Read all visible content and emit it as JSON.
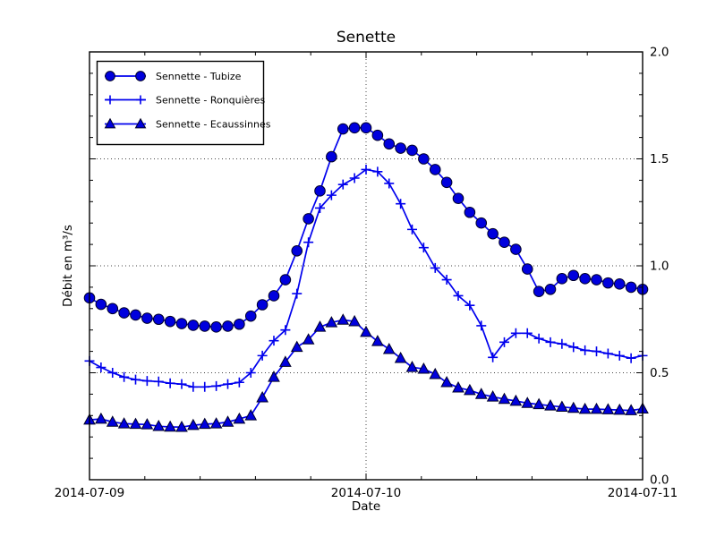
{
  "figure": {
    "background": "#ffffff",
    "border_color": "#000000"
  },
  "chart_data": {
    "type": "line",
    "title": "Senette",
    "xlabel": "Date",
    "ylabel": "Débit en m³/s",
    "x_unit": "hours since 2014-07-09 00:00",
    "xlim_hours": [
      0,
      48
    ],
    "ylim": [
      0.0,
      2.0
    ],
    "x_tick_labels": [
      "2014-07-09",
      "2014-07-10",
      "2014-07-11"
    ],
    "x_major_ticks_hours": [
      0,
      24,
      48
    ],
    "x_minor_tick_step_hours": 4.8,
    "y_tick_labels": [
      "0.0",
      "0.5",
      "1.0",
      "1.5",
      "2.0"
    ],
    "y_major_ticks": [
      0.0,
      0.5,
      1.0,
      1.5,
      2.0
    ],
    "y_minor_tick_step": 0.1,
    "y_tick_label_side": "right",
    "grid": {
      "style": "dotted",
      "x_at_hours": [
        24
      ],
      "y_at": [
        0.5,
        1.0,
        1.5
      ]
    },
    "legend": {
      "position": "upper-left"
    },
    "colors": {
      "line": "#0000ee",
      "marker_fill": "#0000dd",
      "marker_edge": "#000028",
      "grid": "#444444",
      "axis": "#000000"
    },
    "x": [
      0,
      1,
      2,
      3,
      4,
      5,
      6,
      7,
      8,
      9,
      10,
      11,
      12,
      13,
      14,
      15,
      16,
      17,
      18,
      19,
      20,
      21,
      22,
      23,
      24,
      25,
      26,
      27,
      28,
      29,
      30,
      31,
      32,
      33,
      34,
      35,
      36,
      37,
      38,
      39,
      40,
      41,
      42,
      43,
      44,
      45,
      46,
      47,
      48
    ],
    "series": [
      {
        "name": "Sennette - Tubize",
        "marker": "circle",
        "values": [
          0.85,
          0.82,
          0.8,
          0.78,
          0.77,
          0.755,
          0.75,
          0.74,
          0.73,
          0.722,
          0.718,
          0.714,
          0.718,
          0.727,
          0.765,
          0.818,
          0.86,
          0.935,
          1.07,
          1.22,
          1.35,
          1.51,
          1.64,
          1.645,
          1.645,
          1.61,
          1.57,
          1.55,
          1.54,
          1.5,
          1.45,
          1.39,
          1.315,
          1.25,
          1.2,
          1.15,
          1.11,
          1.077,
          0.985,
          0.88,
          0.89,
          0.94,
          0.955,
          0.94,
          0.935,
          0.92,
          0.915,
          0.9,
          0.89
        ]
      },
      {
        "name": "Sennette - Ronquières",
        "marker": "plus",
        "values": [
          0.555,
          0.525,
          0.5,
          0.48,
          0.468,
          0.462,
          0.459,
          0.451,
          0.447,
          0.434,
          0.434,
          0.438,
          0.447,
          0.455,
          0.5,
          0.58,
          0.65,
          0.7,
          0.87,
          1.11,
          1.27,
          1.33,
          1.38,
          1.41,
          1.45,
          1.44,
          1.385,
          1.29,
          1.17,
          1.085,
          0.99,
          0.935,
          0.86,
          0.815,
          0.72,
          0.572,
          0.643,
          0.685,
          0.685,
          0.66,
          0.643,
          0.635,
          0.62,
          0.605,
          0.6,
          0.59,
          0.58,
          0.568,
          0.58
        ]
      },
      {
        "name": "Sennette - Ecaussinnes",
        "marker": "triangle",
        "values": [
          0.28,
          0.284,
          0.27,
          0.262,
          0.26,
          0.258,
          0.25,
          0.247,
          0.246,
          0.255,
          0.26,
          0.262,
          0.27,
          0.284,
          0.3,
          0.384,
          0.48,
          0.55,
          0.62,
          0.655,
          0.714,
          0.735,
          0.747,
          0.74,
          0.69,
          0.647,
          0.61,
          0.568,
          0.526,
          0.518,
          0.493,
          0.455,
          0.43,
          0.418,
          0.4,
          0.388,
          0.377,
          0.368,
          0.358,
          0.352,
          0.346,
          0.34,
          0.335,
          0.33,
          0.33,
          0.328,
          0.326,
          0.324,
          0.332
        ]
      }
    ]
  }
}
